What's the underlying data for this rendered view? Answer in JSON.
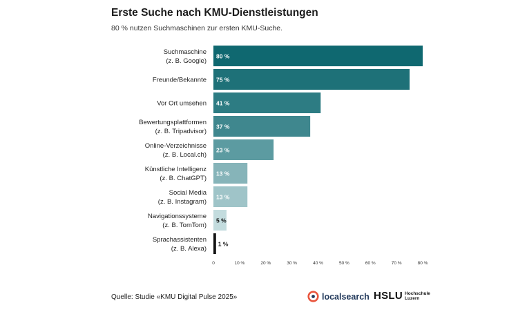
{
  "title": "Erste Suche nach KMU-Dienstleistungen",
  "subtitle": "80 % nutzen Suchmaschinen zur ersten KMU-Suche.",
  "source": "Quelle: Studie «KMU Digital Pulse 2025»",
  "logos": {
    "localsearch": "localsearch",
    "hslu": "HSLU",
    "hslu_sub": [
      "Hochschule",
      "Luzern"
    ]
  },
  "chart_data": {
    "type": "bar",
    "orientation": "horizontal",
    "title": "Erste Suche nach KMU-Dienstleistungen",
    "categories": [
      [
        "Suchmaschine",
        "(z. B. Google)"
      ],
      [
        "Freunde/Bekannte"
      ],
      [
        "Vor Ort umsehen"
      ],
      [
        "Bewertungsplattformen",
        "(z. B. Tripadvisor)"
      ],
      [
        "Online-Verzeichnisse",
        "(z. B. Local.ch)"
      ],
      [
        "Künstliche Intelligenz",
        "(z. B. ChatGPT)"
      ],
      [
        "Social Media",
        "(z. B. Instagram)"
      ],
      [
        "Navigationssysteme",
        "(z. B. TomTom)"
      ],
      [
        "Sprachassistenten",
        "(z. B. Alexa)"
      ]
    ],
    "values": [
      80,
      75,
      41,
      37,
      23,
      13,
      13,
      5,
      1
    ],
    "value_labels": [
      "80 %",
      "75 %",
      "41 %",
      "37 %",
      "23 %",
      "13 %",
      "13 %",
      "5 %",
      "1 %"
    ],
    "colors": [
      "#0f6870",
      "#1e7178",
      "#2d7c83",
      "#3f878e",
      "#5c9ba1",
      "#86b4b9",
      "#9fc4c8",
      "#c3dcde",
      "#111111"
    ],
    "xlim": [
      0,
      80
    ],
    "xticks": [
      0,
      10,
      20,
      30,
      40,
      50,
      60,
      70,
      80
    ],
    "xtick_labels": [
      "0",
      "10 %",
      "20 %",
      "30 %",
      "40 %",
      "50 %",
      "60 %",
      "70 %",
      "80 %"
    ],
    "xlabel": "",
    "ylabel": "",
    "grid": false,
    "legend": "none"
  }
}
